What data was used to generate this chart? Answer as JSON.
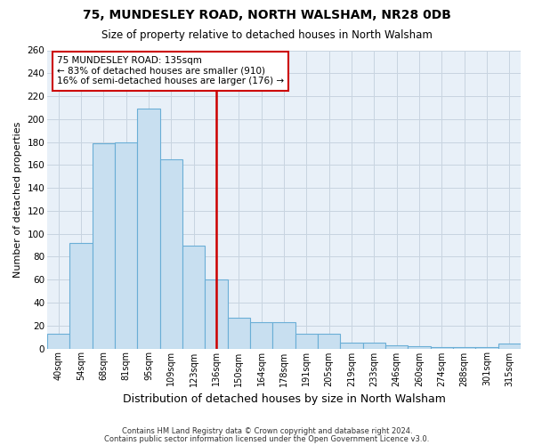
{
  "title": "75, MUNDESLEY ROAD, NORTH WALSHAM, NR28 0DB",
  "subtitle": "Size of property relative to detached houses in North Walsham",
  "xlabel": "Distribution of detached houses by size in North Walsham",
  "ylabel": "Number of detached properties",
  "bar_labels": [
    "40sqm",
    "54sqm",
    "68sqm",
    "81sqm",
    "95sqm",
    "109sqm",
    "123sqm",
    "136sqm",
    "150sqm",
    "164sqm",
    "178sqm",
    "191sqm",
    "205sqm",
    "219sqm",
    "233sqm",
    "246sqm",
    "260sqm",
    "274sqm",
    "288sqm",
    "301sqm",
    "315sqm"
  ],
  "bar_heights": [
    13,
    92,
    179,
    180,
    209,
    165,
    90,
    60,
    27,
    23,
    23,
    13,
    13,
    5,
    5,
    3,
    2,
    1,
    1,
    1,
    4
  ],
  "bar_color": "#c8dff0",
  "bar_edge_color": "#6aaed6",
  "vline_x_index": 7,
  "vline_color": "#cc0000",
  "annotation_title": "75 MUNDESLEY ROAD: 135sqm",
  "annotation_line1": "← 83% of detached houses are smaller (910)",
  "annotation_line2": "16% of semi-detached houses are larger (176) →",
  "annotation_box_edge": "#cc0000",
  "ylim": [
    0,
    260
  ],
  "yticks": [
    0,
    20,
    40,
    60,
    80,
    100,
    120,
    140,
    160,
    180,
    200,
    220,
    240,
    260
  ],
  "footer1": "Contains HM Land Registry data © Crown copyright and database right 2024.",
  "footer2": "Contains public sector information licensed under the Open Government Licence v3.0.",
  "background_color": "#ffffff",
  "plot_background": "#e8f0f8",
  "grid_color": "#c8d4e0"
}
